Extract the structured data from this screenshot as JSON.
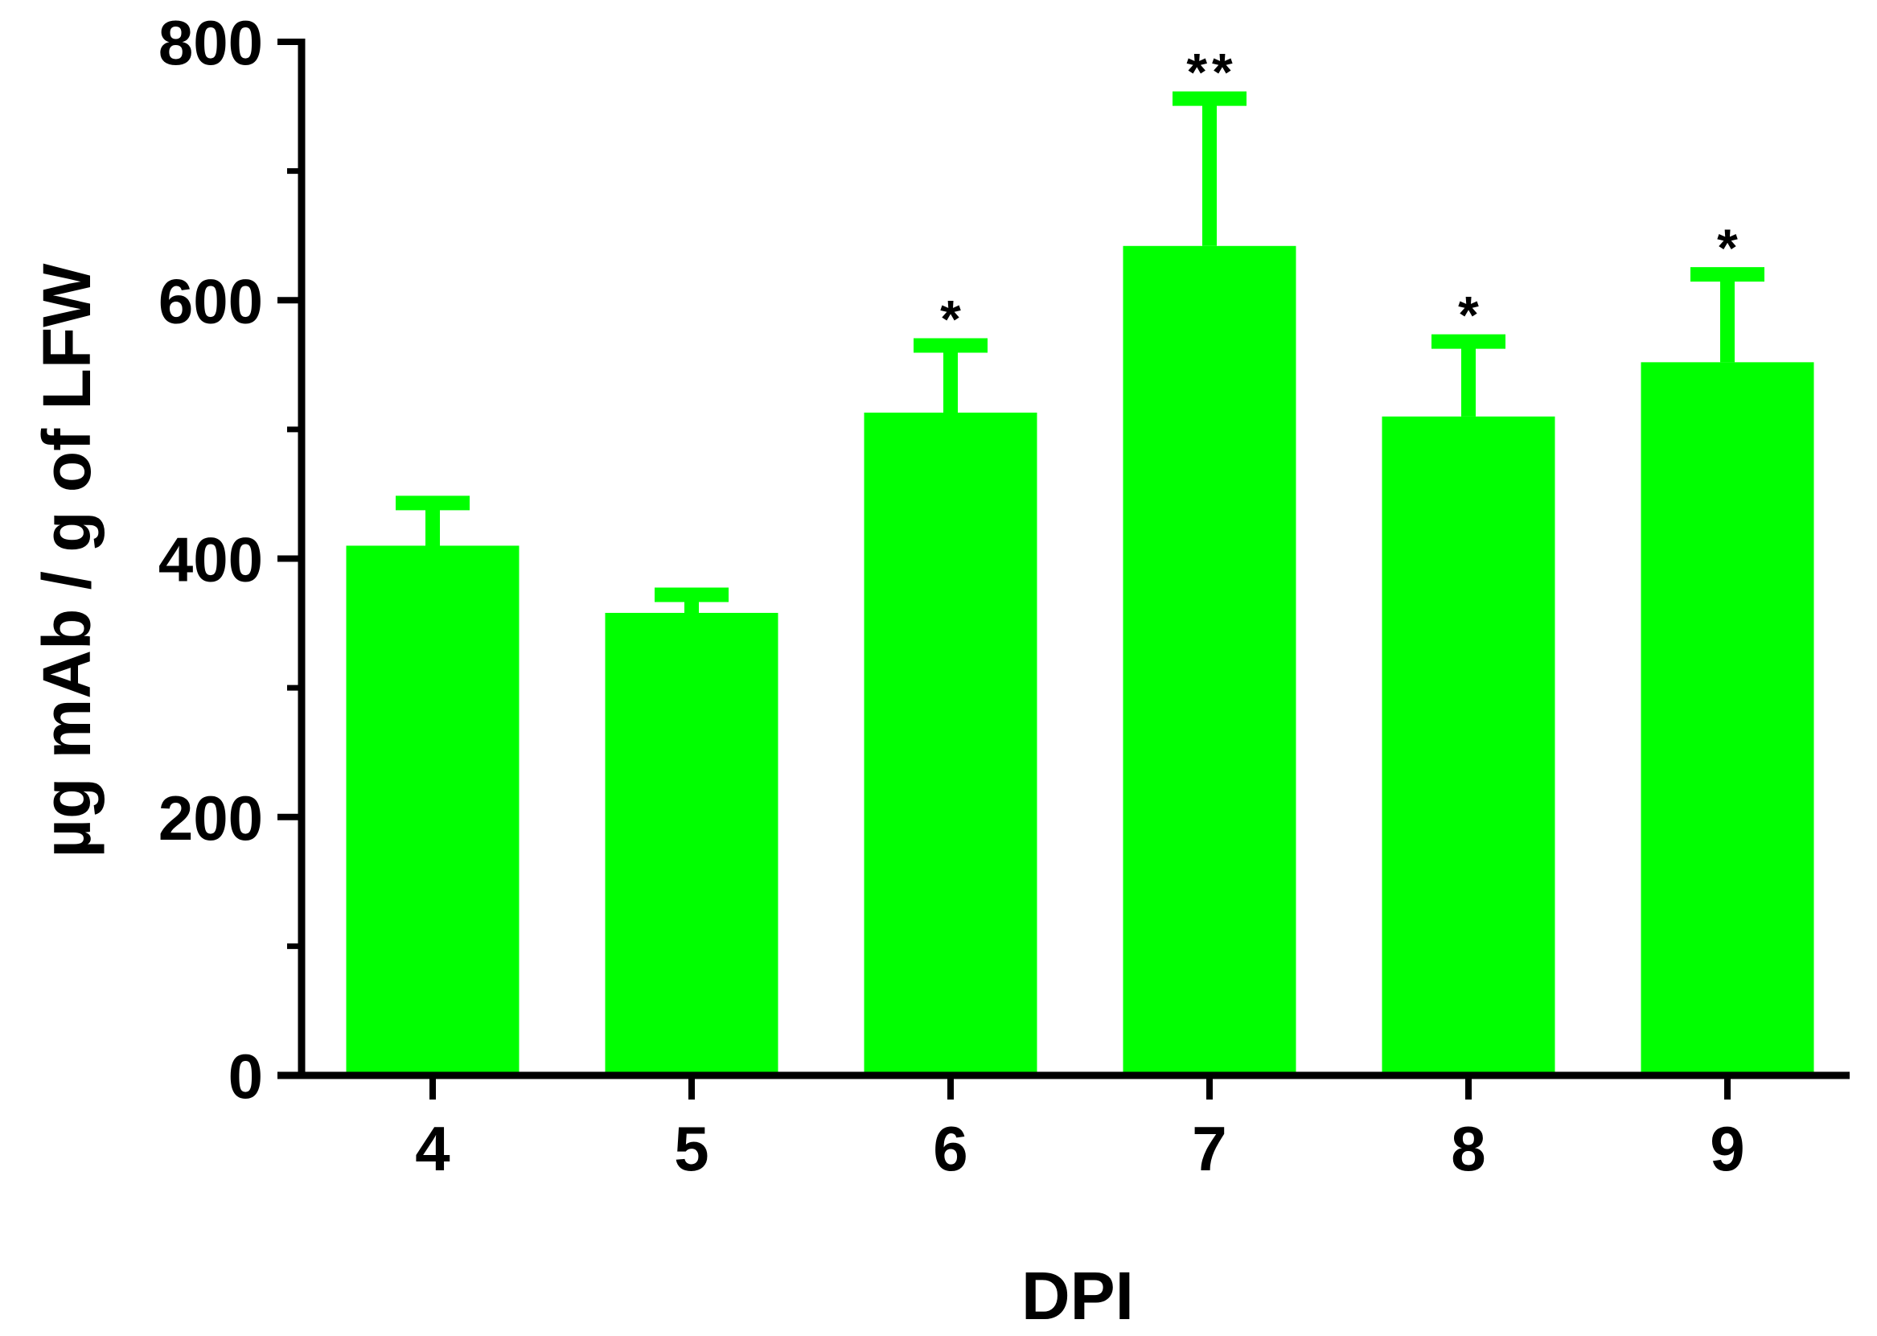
{
  "chart_data": {
    "type": "bar",
    "xlabel": "DPI",
    "ylabel": "µg mAb / g of LFW",
    "ylim": [
      0,
      800
    ],
    "yticks": [
      "0",
      "200",
      "400",
      "600",
      "800"
    ],
    "y_minor_ticks": [
      100,
      300,
      500,
      700
    ],
    "categories": [
      "4",
      "5",
      "6",
      "7",
      "8",
      "9"
    ],
    "values": [
      410,
      358,
      513,
      642,
      510,
      552
    ],
    "errors": [
      33,
      14,
      52,
      114,
      58,
      68
    ],
    "significance": [
      "",
      "",
      "*",
      "**",
      "*",
      "*"
    ],
    "bar_color": "#00ff00",
    "axis_color": "#000000",
    "grid": false,
    "legend": "none"
  }
}
